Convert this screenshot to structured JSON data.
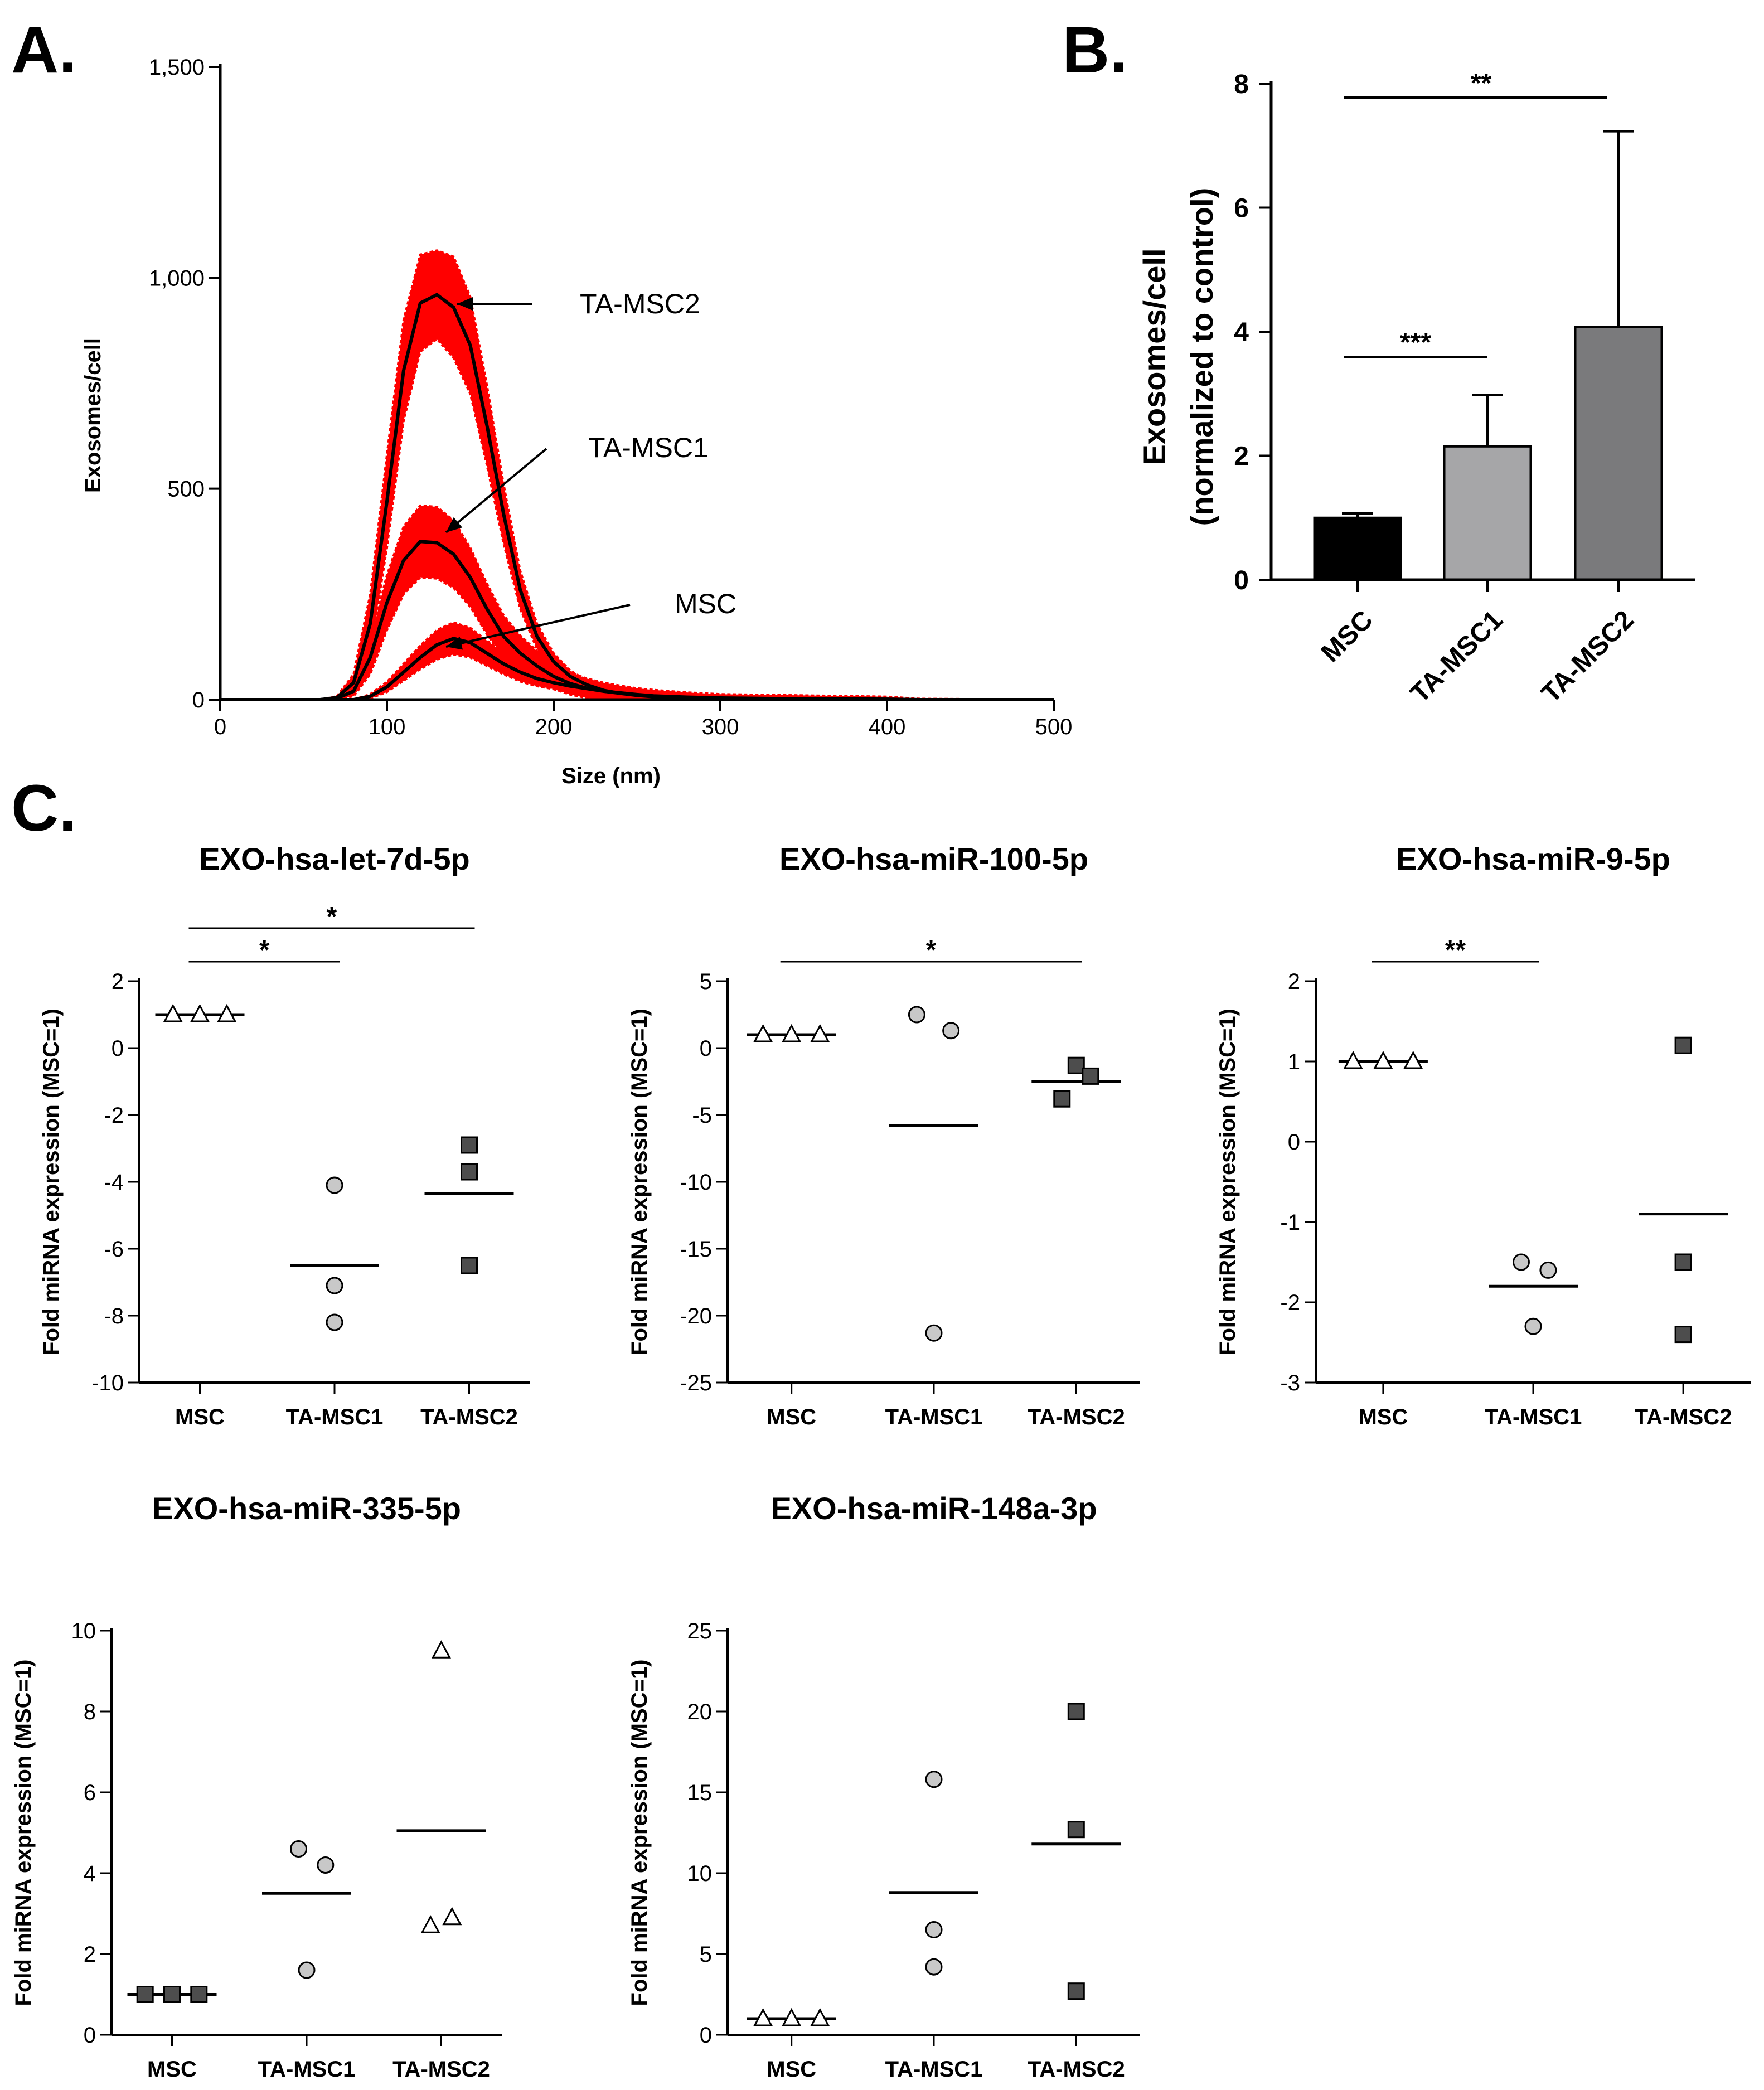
{
  "panel_letters": {
    "a": "A.",
    "b": "B.",
    "c": "C."
  },
  "colors": {
    "band": "#ff0000",
    "line": "#000000",
    "msc_bar": "#000000",
    "ta1_bar": "#a6a6a8",
    "ta2_bar": "#7a7a7c",
    "circle_fill": "#c8c8c8",
    "square_fill": "#4d4d4d",
    "triangle_fill": "#ffffff"
  },
  "chart_data": [
    {
      "id": "A",
      "type": "line",
      "title": "",
      "xlabel": "Size (nm)",
      "ylabel": "Exosomes/cell",
      "xlim": [
        0,
        500
      ],
      "ylim": [
        0,
        1500
      ],
      "xticks": [
        0,
        100,
        200,
        300,
        400,
        500
      ],
      "xtick_labels": [
        "0",
        "100",
        "200",
        "300",
        "400",
        "500"
      ],
      "yticks": [
        0,
        500,
        1000,
        1500
      ],
      "ytick_labels": [
        "0",
        "500",
        "1,000",
        "1,500"
      ],
      "series": [
        {
          "name": "TA-MSC2",
          "label": "TA-MSC2",
          "x": [
            0,
            60,
            70,
            80,
            90,
            100,
            110,
            120,
            130,
            140,
            150,
            160,
            170,
            180,
            190,
            200,
            210,
            220,
            230,
            240,
            250,
            260,
            280,
            300,
            350,
            400,
            420,
            500
          ],
          "y": [
            0,
            0,
            5,
            40,
            180,
            470,
            780,
            940,
            960,
            930,
            840,
            650,
            440,
            260,
            150,
            90,
            55,
            35,
            22,
            15,
            10,
            7,
            4,
            2,
            1,
            0,
            0,
            0
          ],
          "err": [
            0,
            0,
            3,
            20,
            70,
            110,
            120,
            115,
            105,
            120,
            115,
            95,
            70,
            45,
            30,
            20,
            14,
            10,
            8,
            6,
            5,
            4,
            3,
            2,
            1,
            1,
            0,
            0
          ]
        },
        {
          "name": "TA-MSC1",
          "label": "TA-MSC1",
          "x": [
            0,
            60,
            70,
            80,
            90,
            100,
            110,
            120,
            130,
            140,
            150,
            160,
            170,
            180,
            190,
            200,
            210,
            220,
            230,
            240,
            250,
            260,
            280,
            300,
            350,
            400,
            420,
            500
          ],
          "y": [
            0,
            0,
            3,
            20,
            100,
            230,
            330,
            375,
            372,
            345,
            290,
            215,
            150,
            110,
            80,
            55,
            38,
            27,
            20,
            15,
            11,
            8,
            5,
            3,
            2,
            1,
            0,
            0
          ],
          "err": [
            0,
            0,
            2,
            12,
            40,
            65,
            80,
            85,
            85,
            80,
            70,
            60,
            50,
            42,
            35,
            30,
            26,
            23,
            20,
            18,
            16,
            15,
            12,
            10,
            8,
            6,
            2,
            0
          ]
        },
        {
          "name": "MSC",
          "label": "MSC",
          "x": [
            0,
            80,
            90,
            100,
            110,
            120,
            130,
            140,
            150,
            160,
            170,
            180,
            190,
            200,
            210,
            220,
            230,
            240,
            250,
            260,
            280,
            300,
            350,
            400,
            420,
            500
          ],
          "y": [
            0,
            0,
            8,
            30,
            65,
            100,
            130,
            145,
            135,
            110,
            85,
            65,
            50,
            40,
            32,
            26,
            20,
            16,
            12,
            9,
            6,
            4,
            2,
            1,
            0,
            0
          ],
          "err": [
            0,
            0,
            5,
            12,
            20,
            28,
            35,
            38,
            35,
            30,
            25,
            22,
            18,
            15,
            12,
            10,
            9,
            8,
            7,
            6,
            5,
            4,
            2,
            1,
            0,
            0
          ]
        }
      ]
    },
    {
      "id": "B",
      "type": "bar",
      "title": "",
      "xlabel": "",
      "ylabel": "Exosomes/cell",
      "ylabel2": "(normalized to control)",
      "categories": [
        "MSC",
        "TA-MSC1",
        "TA-MSC2"
      ],
      "values": [
        1.0,
        2.15,
        4.08
      ],
      "errors": [
        0.07,
        0.83,
        3.15
      ],
      "ylim": [
        0,
        8
      ],
      "yticks": [
        0,
        2,
        4,
        6,
        8
      ],
      "ytick_labels": [
        "0",
        "2",
        "4",
        "6",
        "8"
      ],
      "significance": [
        {
          "from": 0,
          "to": 1,
          "label": "***"
        },
        {
          "from": 0,
          "to": 2,
          "label": "**"
        }
      ]
    },
    {
      "id": "C1",
      "type": "scatter",
      "title": "EXO-hsa-let-7d-5p",
      "ylabel": "Fold miRNA expression (MSC=1)",
      "categories": [
        "MSC",
        "TA-MSC1",
        "TA-MSC2"
      ],
      "ylim": [
        -10,
        2
      ],
      "yticks": [
        -10,
        -8,
        -6,
        -4,
        -2,
        0,
        2
      ],
      "ytick_labels": [
        "-10",
        "-8",
        "-6",
        "-4",
        "-2",
        "0",
        "2"
      ],
      "groups": [
        {
          "category": "MSC",
          "marker": "triangle",
          "values": [
            1,
            1,
            1
          ],
          "offsets": [
            -0.2,
            0,
            0.2
          ],
          "mean": 1
        },
        {
          "category": "TA-MSC1",
          "marker": "circle",
          "values": [
            -4.1,
            -7.1,
            -8.2
          ],
          "offsets": [
            0,
            0,
            0
          ],
          "mean": -6.5
        },
        {
          "category": "TA-MSC2",
          "marker": "square",
          "values": [
            -2.9,
            -3.7,
            -6.5
          ],
          "offsets": [
            0,
            0,
            0
          ],
          "mean": -4.35
        }
      ],
      "significance": [
        {
          "from": 0,
          "to": 1,
          "label": "*"
        },
        {
          "from": 0,
          "to": 2,
          "label": "*"
        }
      ]
    },
    {
      "id": "C2",
      "type": "scatter",
      "title": "EXO-hsa-miR-100-5p",
      "ylabel": "Fold miRNA expression (MSC=1)",
      "categories": [
        "MSC",
        "TA-MSC1",
        "TA-MSC2"
      ],
      "ylim": [
        -25,
        5
      ],
      "yticks": [
        -25,
        -20,
        -15,
        -10,
        -5,
        0,
        5
      ],
      "ytick_labels": [
        "-25",
        "-20",
        "-15",
        "-10",
        "-5",
        "0",
        "5"
      ],
      "groups": [
        {
          "category": "MSC",
          "marker": "triangle",
          "values": [
            1,
            1,
            1
          ],
          "offsets": [
            -0.2,
            0,
            0.2
          ],
          "mean": 1
        },
        {
          "category": "TA-MSC1",
          "marker": "circle",
          "values": [
            2.5,
            1.3,
            -21.3
          ],
          "offsets": [
            -0.12,
            0.12,
            0
          ],
          "mean": -5.8
        },
        {
          "category": "TA-MSC2",
          "marker": "square",
          "values": [
            -1.3,
            -2.1,
            -3.8
          ],
          "offsets": [
            0,
            0.1,
            -0.1
          ],
          "mean": -2.5
        }
      ],
      "significance": [
        {
          "from": 0,
          "to": 2,
          "label": "*"
        }
      ]
    },
    {
      "id": "C3",
      "type": "scatter",
      "title": "EXO-hsa-miR-9-5p",
      "ylabel": "Fold miRNA expression (MSC=1)",
      "categories": [
        "MSC",
        "TA-MSC1",
        "TA-MSC2"
      ],
      "ylim": [
        -3,
        2
      ],
      "yticks": [
        -3,
        -2,
        -1,
        0,
        1,
        2
      ],
      "ytick_labels": [
        "-3",
        "-2",
        "-1",
        "0",
        "1",
        "2"
      ],
      "groups": [
        {
          "category": "MSC",
          "marker": "triangle",
          "values": [
            1,
            1,
            1
          ],
          "offsets": [
            -0.2,
            0,
            0.2
          ],
          "mean": 1
        },
        {
          "category": "TA-MSC1",
          "marker": "circle",
          "values": [
            -1.5,
            -1.6,
            -2.3
          ],
          "offsets": [
            -0.08,
            0.1,
            0
          ],
          "mean": -1.8
        },
        {
          "category": "TA-MSC2",
          "marker": "square",
          "values": [
            1.2,
            -1.5,
            -2.4
          ],
          "offsets": [
            0,
            0,
            0
          ],
          "mean": -0.9
        }
      ],
      "significance": [
        {
          "from": 0,
          "to": 1,
          "label": "**"
        }
      ]
    },
    {
      "id": "C4",
      "type": "scatter",
      "title": "EXO-hsa-miR-335-5p",
      "ylabel": "Fold miRNA expression (MSC=1)",
      "categories": [
        "MSC",
        "TA-MSC1",
        "TA-MSC2"
      ],
      "ylim": [
        0,
        10
      ],
      "yticks": [
        0,
        2,
        4,
        6,
        8,
        10
      ],
      "ytick_labels": [
        "0",
        "2",
        "4",
        "6",
        "8",
        "10"
      ],
      "groups": [
        {
          "category": "MSC",
          "marker": "square",
          "values": [
            1,
            1,
            1
          ],
          "offsets": [
            -0.2,
            0,
            0.2
          ],
          "mean": 1
        },
        {
          "category": "TA-MSC1",
          "marker": "circle",
          "values": [
            4.6,
            4.2,
            1.6
          ],
          "offsets": [
            -0.06,
            0.14,
            0
          ],
          "mean": 3.5
        },
        {
          "category": "TA-MSC2",
          "marker": "triangle",
          "values": [
            9.5,
            2.7,
            2.9
          ],
          "offsets": [
            0,
            -0.08,
            0.08
          ],
          "mean": 5.05
        }
      ],
      "significance": []
    },
    {
      "id": "C5",
      "type": "scatter",
      "title": "EXO-hsa-miR-148a-3p",
      "ylabel": "Fold miRNA expression (MSC=1)",
      "categories": [
        "MSC",
        "TA-MSC1",
        "TA-MSC2"
      ],
      "ylim": [
        0,
        25
      ],
      "yticks": [
        0,
        5,
        10,
        15,
        20,
        25
      ],
      "ytick_labels": [
        "0",
        "5",
        "10",
        "15",
        "20",
        "25"
      ],
      "groups": [
        {
          "category": "MSC",
          "marker": "triangle",
          "values": [
            1,
            1,
            1
          ],
          "offsets": [
            -0.2,
            0,
            0.2
          ],
          "mean": 1
        },
        {
          "category": "TA-MSC1",
          "marker": "circle",
          "values": [
            15.8,
            6.5,
            4.2
          ],
          "offsets": [
            0,
            0,
            0
          ],
          "mean": 8.8
        },
        {
          "category": "TA-MSC2",
          "marker": "square",
          "values": [
            20.0,
            12.7,
            2.7
          ],
          "offsets": [
            0,
            0,
            0
          ],
          "mean": 11.8
        }
      ],
      "significance": []
    }
  ]
}
